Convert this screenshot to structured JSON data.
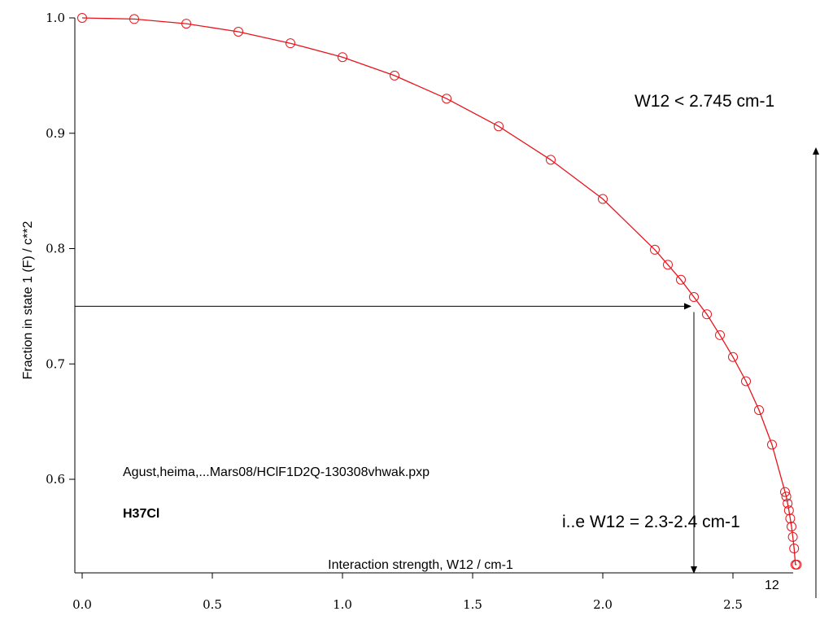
{
  "chart_data": {
    "type": "scatter",
    "xlabel": "Interaction strength, W12 / cm-1",
    "ylabel": "Fraction in state 1 (F) / c**2",
    "xlim": [
      -0.03,
      2.82
    ],
    "ylim": [
      0.518,
      1.013
    ],
    "xticks": [
      "0.0",
      "0.5",
      "1.0",
      "1.5",
      "2.0",
      "2.5"
    ],
    "yticks": [
      "0.6",
      "0.7",
      "0.8",
      "0.9",
      "1.0"
    ],
    "grid": false,
    "legend": "none",
    "series": [
      {
        "color": "#e8141c",
        "marker": "open-circle",
        "line": "solid",
        "x": [
          0.0,
          0.2,
          0.4,
          0.6,
          0.8,
          1.0,
          1.2,
          1.4,
          1.6,
          1.8,
          2.0,
          2.2,
          2.25,
          2.3,
          2.35,
          2.4,
          2.45,
          2.5,
          2.55,
          2.6,
          2.65,
          2.7,
          2.705,
          2.71,
          2.715,
          2.72,
          2.725,
          2.73,
          2.735,
          2.74,
          2.745
        ],
        "y": [
          1.0,
          0.999,
          0.995,
          0.988,
          0.978,
          0.966,
          0.95,
          0.93,
          0.906,
          0.877,
          0.843,
          0.799,
          0.786,
          0.773,
          0.758,
          0.743,
          0.725,
          0.706,
          0.685,
          0.66,
          0.63,
          0.589,
          0.585,
          0.579,
          0.573,
          0.566,
          0.559,
          0.55,
          0.54,
          0.526,
          0.526
        ]
      }
    ],
    "annotations": {
      "source_file": "Agust,heima,...Mars08/HClF1D2Q-130308vhwak.pxp",
      "molecule": "H37Cl",
      "upper_limit": "W12 < 2.745 cm-1",
      "estimate": "i..e W12 = 2.3-2.4 cm-1",
      "corner_label": "12"
    },
    "arrows": {
      "horizontal": {
        "from": [
          0.0,
          0.75
        ],
        "to": [
          2.35,
          0.75
        ]
      },
      "vertical": {
        "from": [
          2.35,
          0.745
        ],
        "to": [
          2.35,
          0.518
        ]
      }
    }
  }
}
